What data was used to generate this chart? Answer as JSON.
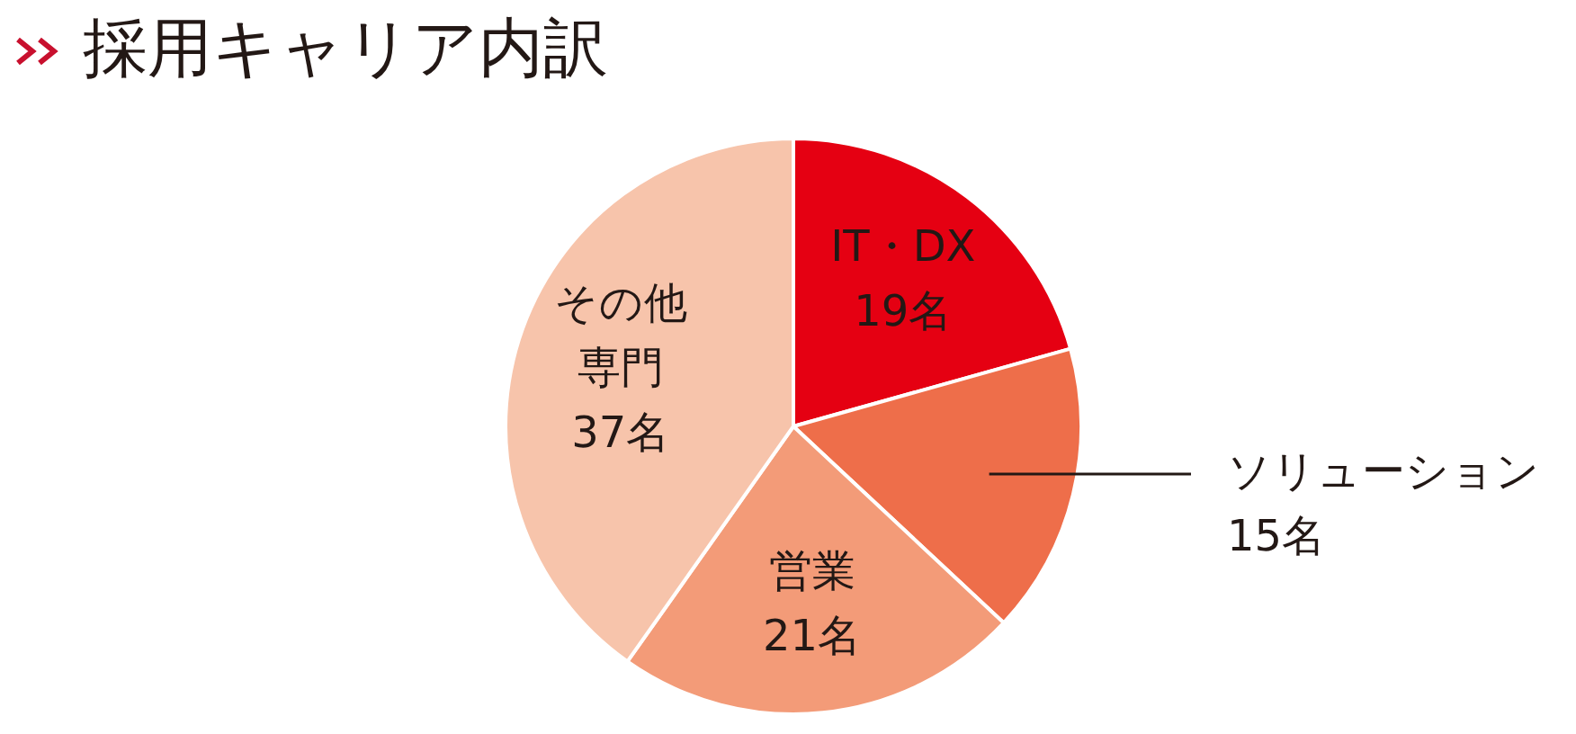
{
  "chart_data": {
    "type": "pie",
    "title": "採用キャリア内訳",
    "categories": [
      "IT・DX",
      "ソリューション",
      "営業",
      "その他専門"
    ],
    "values": [
      19,
      15,
      21,
      37
    ],
    "colors": [
      "#e50012",
      "#ee6e4a",
      "#f39b78",
      "#f7c4ab"
    ],
    "value_labels": [
      "19名",
      "15名",
      "21名",
      "37名"
    ]
  }
}
